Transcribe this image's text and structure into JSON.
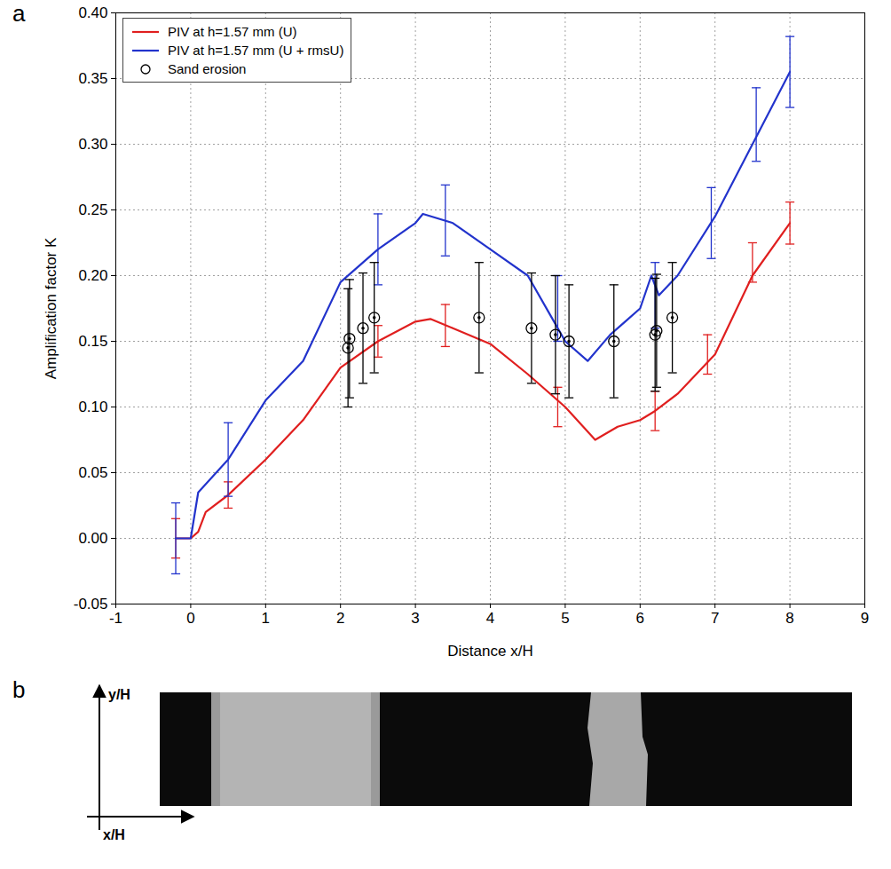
{
  "chart_data": {
    "type": "line",
    "panel_label": "a",
    "xlabel": "Distance x/H",
    "ylabel": "Amplification factor K",
    "xlim": [
      -1,
      9
    ],
    "ylim": [
      -0.05,
      0.4
    ],
    "xticks": [
      -1,
      0,
      1,
      2,
      3,
      4,
      5,
      6,
      7,
      8,
      9
    ],
    "yticks": [
      {
        "value": -0.05,
        "label": "-0.05"
      },
      {
        "value": 0,
        "label": "0.00"
      },
      {
        "value": 0.05,
        "label": "0.05"
      },
      {
        "value": 0.1,
        "label": "0.10"
      },
      {
        "value": 0.15,
        "label": "0.15"
      },
      {
        "value": 0.2,
        "label": "0.20"
      },
      {
        "value": 0.25,
        "label": "0.25"
      },
      {
        "value": 0.3,
        "label": "0.30"
      },
      {
        "value": 0.35,
        "label": "0.35"
      },
      {
        "value": 0.4,
        "label": "0.40"
      }
    ],
    "grid": true,
    "legend": "upper left",
    "series": [
      {
        "name": "PIV at h=1.57 mm (U)",
        "type": "line",
        "color": "#e01f1f",
        "line_style": "solid",
        "x": [
          -0.2,
          0,
          0.1,
          0.2,
          0.5,
          1,
          1.5,
          2,
          2.5,
          3,
          3.2,
          3.5,
          4,
          4.5,
          5,
          5.4,
          5.7,
          6,
          6.2,
          6.5,
          7,
          7.5,
          8
        ],
        "values": [
          0,
          0,
          0.005,
          0.02,
          0.033,
          0.06,
          0.09,
          0.13,
          0.15,
          0.165,
          0.167,
          0.16,
          0.148,
          0.125,
          0.1,
          0.075,
          0.085,
          0.09,
          0.097,
          0.11,
          0.14,
          0.2,
          0.24
        ],
        "error_bars": {
          "x": [
            -0.2,
            0.5,
            2.5,
            3.4,
            4.9,
            6.2,
            6.9,
            7.5,
            8
          ],
          "y": [
            0,
            0.033,
            0.15,
            0.162,
            0.1,
            0.097,
            0.14,
            0.21,
            0.24
          ],
          "error": [
            0.015,
            0.01,
            0.012,
            0.016,
            0.015,
            0.015,
            0.015,
            0.015,
            0.016
          ]
        }
      },
      {
        "name": "PIV at h=1.57 mm (U + rmsU)",
        "type": "line",
        "color": "#2233cc",
        "line_style": "solid",
        "x": [
          -0.2,
          0,
          0.1,
          0.5,
          1,
          1.5,
          2,
          2.5,
          3,
          3.1,
          3.5,
          4,
          4.5,
          4.8,
          5,
          5.3,
          5.6,
          5.8,
          6,
          6.15,
          6.25,
          6.5,
          7,
          7.5,
          8
        ],
        "values": [
          0,
          0,
          0.035,
          0.06,
          0.105,
          0.135,
          0.195,
          0.22,
          0.24,
          0.247,
          0.24,
          0.22,
          0.2,
          0.17,
          0.15,
          0.135,
          0.155,
          0.165,
          0.175,
          0.2,
          0.185,
          0.2,
          0.245,
          0.3,
          0.355
        ],
        "error_bars": {
          "x": [
            -0.2,
            0.5,
            2.5,
            3.4,
            4.9,
            6.2,
            6.95,
            7.55,
            8
          ],
          "y": [
            0,
            0.06,
            0.22,
            0.242,
            0.175,
            0.185,
            0.24,
            0.315,
            0.355
          ],
          "error": [
            0.027,
            0.028,
            0.027,
            0.027,
            0.025,
            0.025,
            0.027,
            0.028,
            0.027
          ]
        }
      },
      {
        "name": "Sand erosion",
        "type": "scatter",
        "marker": "circle",
        "color": "#000000",
        "x": [
          2.1,
          2.12,
          2.3,
          2.45,
          3.85,
          4.55,
          4.87,
          5.05,
          5.65,
          6.2,
          6.22,
          6.43
        ],
        "values": [
          0.145,
          0.152,
          0.16,
          0.168,
          0.168,
          0.16,
          0.155,
          0.15,
          0.15,
          0.155,
          0.158,
          0.168
        ],
        "error_bars": {
          "x": [
            2.1,
            2.12,
            2.3,
            2.45,
            3.85,
            4.55,
            4.87,
            5.05,
            5.65,
            6.2,
            6.22,
            6.43
          ],
          "y": [
            0.145,
            0.152,
            0.16,
            0.168,
            0.168,
            0.16,
            0.155,
            0.15,
            0.15,
            0.155,
            0.158,
            0.168
          ],
          "error": [
            0.045,
            0.045,
            0.042,
            0.042,
            0.042,
            0.042,
            0.045,
            0.043,
            0.043,
            0.043,
            0.043,
            0.042
          ]
        }
      }
    ]
  },
  "panel_b": {
    "panel_label": "b",
    "y_axis": "y/H",
    "x_axis": "x/H"
  }
}
